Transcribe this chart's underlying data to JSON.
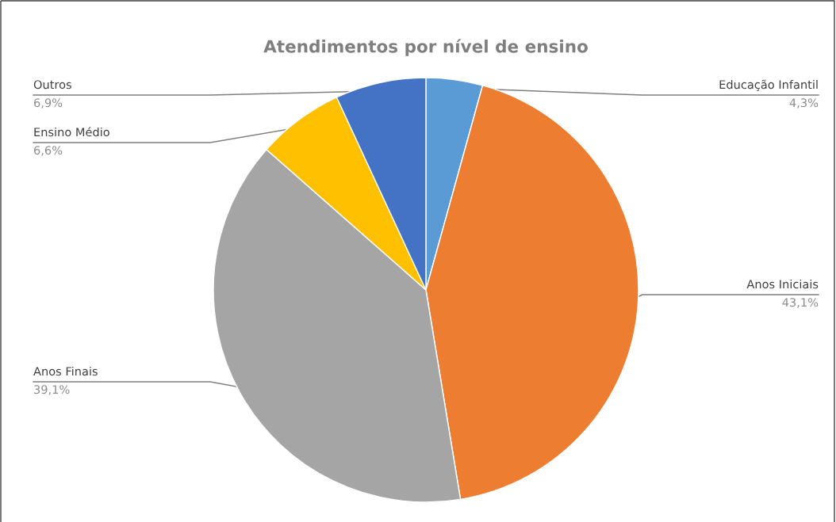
{
  "chart_data": {
    "type": "pie",
    "title": "Atendimentos por nível de ensino",
    "categories": [
      "Educação Infantil",
      "Anos Iniciais",
      "Anos Finais",
      "Ensino Médio",
      "Outros"
    ],
    "values": [
      4.3,
      43.1,
      39.1,
      6.6,
      6.9
    ],
    "colors": [
      "#5b9bd5",
      "#ed7d31",
      "#a5a5a5",
      "#ffc000",
      "#4472c4"
    ],
    "value_labels": [
      "4,3%",
      "43,1%",
      "39,1%",
      "6,6%",
      "6,9%"
    ],
    "legend": false
  }
}
